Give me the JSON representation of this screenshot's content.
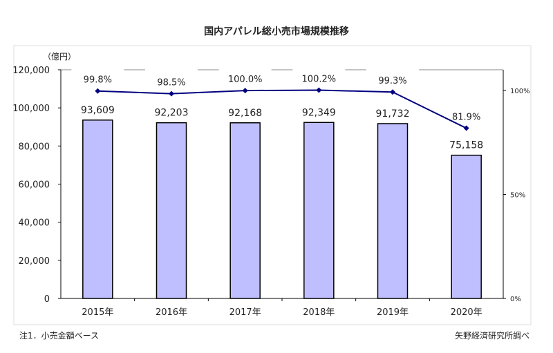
{
  "chart_data": {
    "type": "bar+line",
    "title": "国内アパレル総小売市場規模推移",
    "unit_label": "（億円）",
    "categories": [
      "2015年",
      "2016年",
      "2017年",
      "2018年",
      "2019年",
      "2020年"
    ],
    "bar_series": {
      "values": [
        93609,
        92203,
        92168,
        92349,
        91732,
        75158
      ],
      "labels": [
        "93,609",
        "92,203",
        "92,168",
        "92,349",
        "91,732",
        "75,158"
      ],
      "color": "#bfbfff"
    },
    "line_series": {
      "values": [
        99.8,
        98.5,
        100.0,
        100.2,
        99.3,
        81.9
      ],
      "labels": [
        "99.8%",
        "98.5%",
        "100.0%",
        "100.2%",
        "99.3%",
        "81.9%"
      ],
      "color": "#000080"
    },
    "ylim": [
      0,
      120000
    ],
    "yticks": [
      "0",
      "20,000",
      "40,000",
      "60,000",
      "80,000",
      "100,000",
      "120,000"
    ],
    "y2lim": [
      0,
      110
    ],
    "y2ticks": [
      "0%",
      "50%",
      "100%"
    ],
    "grid": false
  },
  "note_left": "注1．小売金額ベース",
  "note_right": "矢野経済研究所調べ"
}
